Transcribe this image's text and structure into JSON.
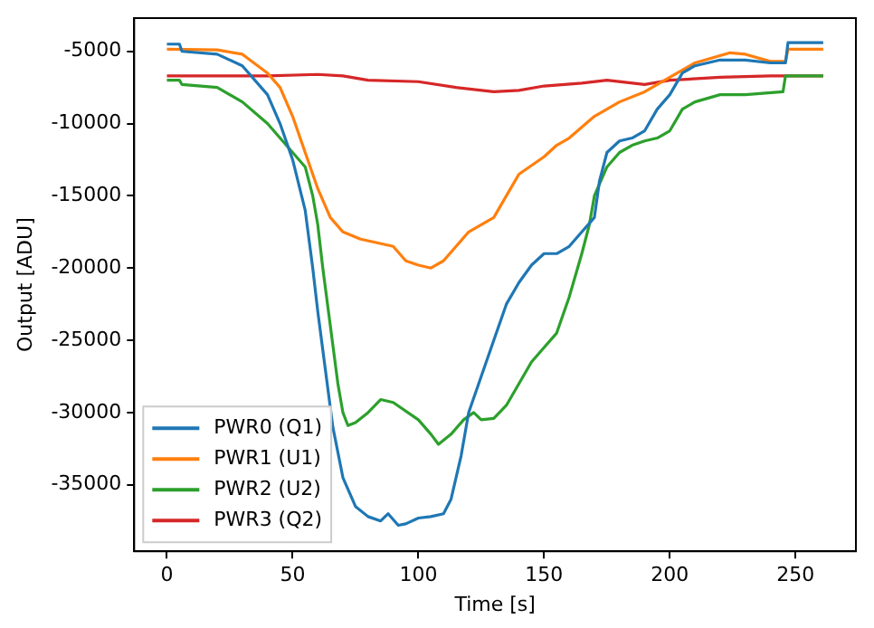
{
  "chart_data": {
    "type": "line",
    "xlabel": "Time [s]",
    "ylabel": "Output [ADU]",
    "xlim": [
      -13,
      274
    ],
    "ylim": [
      -39600,
      -2700
    ],
    "xticks": [
      0,
      50,
      100,
      150,
      200,
      250
    ],
    "yticks": [
      -35000,
      -30000,
      -25000,
      -20000,
      -15000,
      -10000,
      -5000
    ],
    "grid": false,
    "legend": "bottom left",
    "marker": "none",
    "line_style": "solid",
    "series": [
      {
        "name": "PWR0 (Q1)",
        "color": "#1f77b4",
        "x": [
          0,
          5,
          6,
          20,
          30,
          40,
          45,
          50,
          55,
          58,
          60,
          63,
          66,
          70,
          75,
          80,
          85,
          88,
          92,
          95,
          100,
          105,
          110,
          113,
          117,
          120,
          125,
          130,
          135,
          140,
          145,
          150,
          155,
          160,
          165,
          170,
          172,
          175,
          180,
          185,
          190,
          195,
          200,
          205,
          210,
          220,
          230,
          240,
          246,
          247,
          261
        ],
        "values": [
          -4500,
          -4500,
          -5000,
          -5200,
          -6000,
          -8000,
          -10000,
          -12500,
          -16000,
          -20000,
          -23000,
          -27000,
          -31000,
          -34500,
          -36500,
          -37200,
          -37500,
          -37000,
          -37800,
          -37700,
          -37300,
          -37200,
          -37000,
          -36000,
          -33000,
          -30000,
          -27500,
          -25000,
          -22500,
          -21000,
          -19800,
          -19000,
          -19000,
          -18500,
          -17500,
          -16500,
          -14000,
          -12000,
          -11200,
          -11000,
          -10500,
          -9000,
          -8000,
          -6500,
          -6000,
          -5600,
          -5600,
          -5800,
          -5800,
          -4400,
          -4400
        ]
      },
      {
        "name": "PWR1 (U1)",
        "color": "#ff7f0e",
        "x": [
          0,
          20,
          30,
          40,
          45,
          50,
          55,
          60,
          65,
          70,
          77,
          90,
          95,
          100,
          105,
          110,
          115,
          120,
          125,
          130,
          135,
          140,
          150,
          155,
          160,
          170,
          180,
          190,
          200,
          210,
          224,
          230,
          240,
          246,
          247,
          261
        ],
        "values": [
          -4850,
          -4900,
          -5200,
          -6500,
          -7500,
          -9500,
          -12000,
          -14500,
          -16500,
          -17500,
          -18000,
          -18500,
          -19500,
          -19800,
          -20000,
          -19500,
          -18500,
          -17500,
          -17000,
          -16500,
          -15000,
          -13500,
          -12300,
          -11500,
          -11000,
          -9500,
          -8500,
          -7800,
          -6800,
          -5800,
          -5100,
          -5200,
          -5700,
          -5700,
          -4850,
          -4850
        ]
      },
      {
        "name": "PWR2 (U2)",
        "color": "#2ca02c",
        "x": [
          0,
          5,
          6,
          20,
          30,
          40,
          50,
          55,
          58,
          60,
          62,
          65,
          68,
          70,
          72,
          75,
          80,
          85,
          90,
          100,
          105,
          108,
          113,
          118,
          122,
          125,
          130,
          135,
          140,
          145,
          150,
          155,
          160,
          165,
          168,
          170,
          175,
          180,
          185,
          190,
          195,
          200,
          205,
          210,
          220,
          230,
          245,
          246,
          261
        ],
        "values": [
          -7000,
          -7000,
          -7300,
          -7500,
          -8500,
          -10000,
          -12000,
          -13000,
          -15000,
          -17000,
          -20000,
          -24000,
          -28000,
          -30000,
          -30900,
          -30700,
          -30000,
          -29100,
          -29300,
          -30500,
          -31500,
          -32200,
          -31500,
          -30500,
          -30000,
          -30500,
          -30400,
          -29500,
          -28000,
          -26500,
          -25500,
          -24500,
          -22000,
          -19000,
          -17000,
          -15000,
          -13000,
          -12000,
          -11500,
          -11200,
          -11000,
          -10500,
          -9000,
          -8500,
          -8000,
          -8000,
          -7800,
          -6700,
          -6700
        ]
      },
      {
        "name": "PWR3 (Q2)",
        "color": "#d62728",
        "x": [
          0,
          20,
          40,
          60,
          70,
          80,
          100,
          115,
          130,
          140,
          150,
          165,
          175,
          190,
          200,
          220,
          240,
          261
        ],
        "values": [
          -6700,
          -6700,
          -6700,
          -6600,
          -6700,
          -7000,
          -7100,
          -7500,
          -7800,
          -7700,
          -7400,
          -7200,
          -7000,
          -7300,
          -7000,
          -6800,
          -6700,
          -6700
        ]
      }
    ]
  }
}
